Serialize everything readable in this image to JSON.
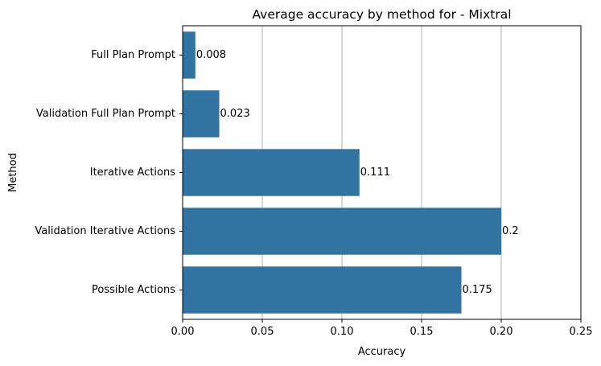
{
  "chart_data": {
    "type": "bar",
    "orientation": "horizontal",
    "title": "Average accuracy by method for - Mixtral",
    "xlabel": "Accuracy",
    "ylabel": "Method",
    "categories": [
      "Full Plan Prompt",
      "Validation Full Plan Prompt",
      "Iterative Actions",
      "Validation Iterative Actions",
      "Possible Actions"
    ],
    "values": [
      0.008,
      0.023,
      0.111,
      0.2,
      0.175
    ],
    "data_labels": [
      "0.008",
      "0.023",
      "0.111",
      "0.2",
      "0.175"
    ],
    "xlim": [
      0,
      0.25
    ],
    "xticks": [
      0.0,
      0.05,
      0.1,
      0.15,
      0.2,
      0.25
    ],
    "xtick_labels": [
      "0.00",
      "0.05",
      "0.10",
      "0.15",
      "0.20",
      "0.25"
    ],
    "grid": "vertical",
    "bar_color": "#3274a1",
    "grid_color": "#b0b0b0"
  }
}
